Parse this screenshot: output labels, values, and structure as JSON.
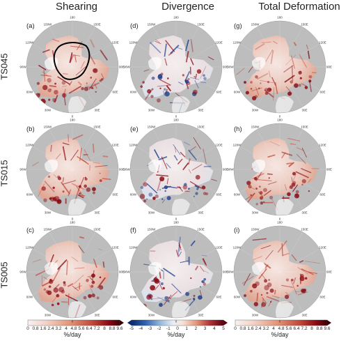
{
  "columns": [
    {
      "title": "Shearing",
      "colormap": "sequential"
    },
    {
      "title": "Divergence",
      "colormap": "diverging"
    },
    {
      "title": "Total Deformation",
      "colormap": "sequential"
    }
  ],
  "rows": [
    {
      "label": "TS045",
      "panels": [
        "(a)",
        "(d)",
        "(g)"
      ]
    },
    {
      "label": "TS015",
      "panels": [
        "(b)",
        "(e)",
        "(h)"
      ]
    },
    {
      "label": "TS005",
      "panels": [
        "(c)",
        "(f)",
        "(i)"
      ]
    }
  ],
  "longitude_labels": [
    "180",
    "150W",
    "150E",
    "120W",
    "120E",
    "90W",
    "90E",
    "60W",
    "60E",
    "30W",
    "30E",
    "0"
  ],
  "colorbars": [
    {
      "unit": "%/day",
      "ticks": [
        "0",
        "0.8",
        "1.6",
        "2.4",
        "3.2",
        "4",
        "4.8",
        "5.6",
        "6.4",
        "7.2",
        "8",
        "8.8",
        "9.6"
      ],
      "min": 0,
      "max": 9.6,
      "extend": "max"
    },
    {
      "unit": "%/day",
      "ticks": [
        "-5",
        "-4",
        "-3",
        "-2",
        "-1",
        "0",
        "1",
        "2",
        "3",
        "4",
        "5"
      ],
      "min": -5,
      "max": 5,
      "extend": "both"
    },
    {
      "unit": "%/day",
      "ticks": [
        "0",
        "0.8",
        "1.6",
        "2.4",
        "3.2",
        "4",
        "4.8",
        "5.6",
        "6.4",
        "7.2",
        "8",
        "8.8",
        "9.6"
      ],
      "min": 0,
      "max": 9.6,
      "extend": "max"
    }
  ],
  "colors": {
    "land": "#bdbdbd",
    "ocean_background": "#d8d8d8",
    "ice_low": "#f4ecea",
    "red_high": "#8b0a14",
    "blue_low": "#1f3f8f",
    "contour": "#000000"
  },
  "annotation": {
    "panel": "(a)",
    "shape": "black contour outline around central Arctic region"
  }
}
